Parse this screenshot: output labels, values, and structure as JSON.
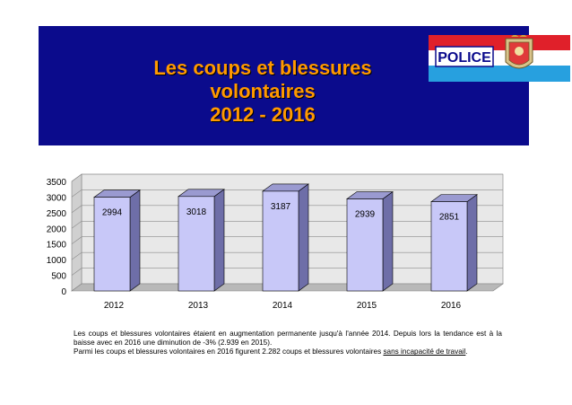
{
  "slide": {
    "title_lines": [
      "Les coups et blessures",
      "volontaires",
      "2012 - 2016"
    ],
    "logo_text": "POLICE",
    "caption_line1": "Les coups et blessures volontaires étaient en augmentation permanente jusqu'à l'année 2014. Depuis lors la tendance est à la baisse  avec en 2016 une diminution de -3% (2.939 en 2015).",
    "caption_line2_prefix": "Parmi les coups et blessures volontaires en 2016 figurent 2.282 coups et blessures volontaires",
    "caption_line2_underlined": "sans incapacité de travail",
    "caption_line2_suffix": "."
  },
  "colors": {
    "banner_bg": "#0b0b8c",
    "title": "#ff9900",
    "bar_front": "#c8c8f8",
    "bar_side": "#6e6ea8",
    "bar_top": "#9a9ad0",
    "wall": "#e8e8e8"
  },
  "chart_data": {
    "type": "bar",
    "categories": [
      "2012",
      "2013",
      "2014",
      "2015",
      "2016"
    ],
    "values": [
      2994,
      3018,
      3187,
      2939,
      2851
    ],
    "data_labels": [
      "2994",
      "3018",
      "3187",
      "2939",
      "2851"
    ],
    "ylim": [
      0,
      3500
    ],
    "yticks": [
      "0",
      "500",
      "1000",
      "1500",
      "2000",
      "2500",
      "3000",
      "3500"
    ],
    "grid": true,
    "legend": "none",
    "style": "3d-column"
  }
}
